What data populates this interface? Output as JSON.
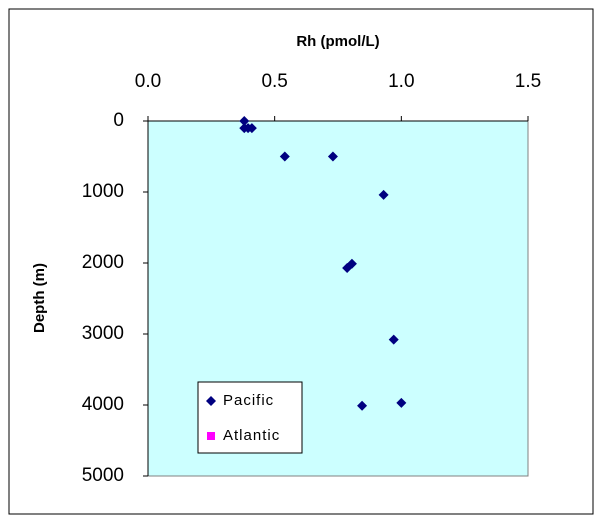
{
  "chart_data": {
    "type": "scatter",
    "x_label": "Rh (pmol/L)",
    "y_label": "Depth (m)",
    "xlim": [
      0,
      1.5
    ],
    "xticks": [
      {
        "value": 0,
        "label": "0.0"
      },
      {
        "value": 0.5,
        "label": "0.5"
      },
      {
        "value": 1,
        "label": "1.0"
      },
      {
        "value": 1.5,
        "label": "1.5"
      }
    ],
    "ylim": [
      0,
      5000
    ],
    "yticks": [
      0,
      1000,
      2000,
      3000,
      4000,
      5000
    ],
    "y_inverted": true,
    "x_axis_position": "top",
    "background": "#ccffff",
    "series": [
      {
        "name": "Pacific",
        "color": "#000080",
        "marker": "diamond",
        "x": [
          0.38,
          0.395,
          0.38,
          0.41,
          0.54,
          0.73,
          0.93,
          0.805,
          0.786,
          0.97,
          1.0,
          0.845
        ],
        "values": [
          0,
          100,
          100,
          100,
          500,
          500,
          1040,
          2010,
          2070,
          3080,
          3970,
          4010
        ]
      },
      {
        "name": "Atlantic",
        "color": "#ff00ff",
        "marker": "square",
        "x": [],
        "values": []
      }
    ]
  }
}
